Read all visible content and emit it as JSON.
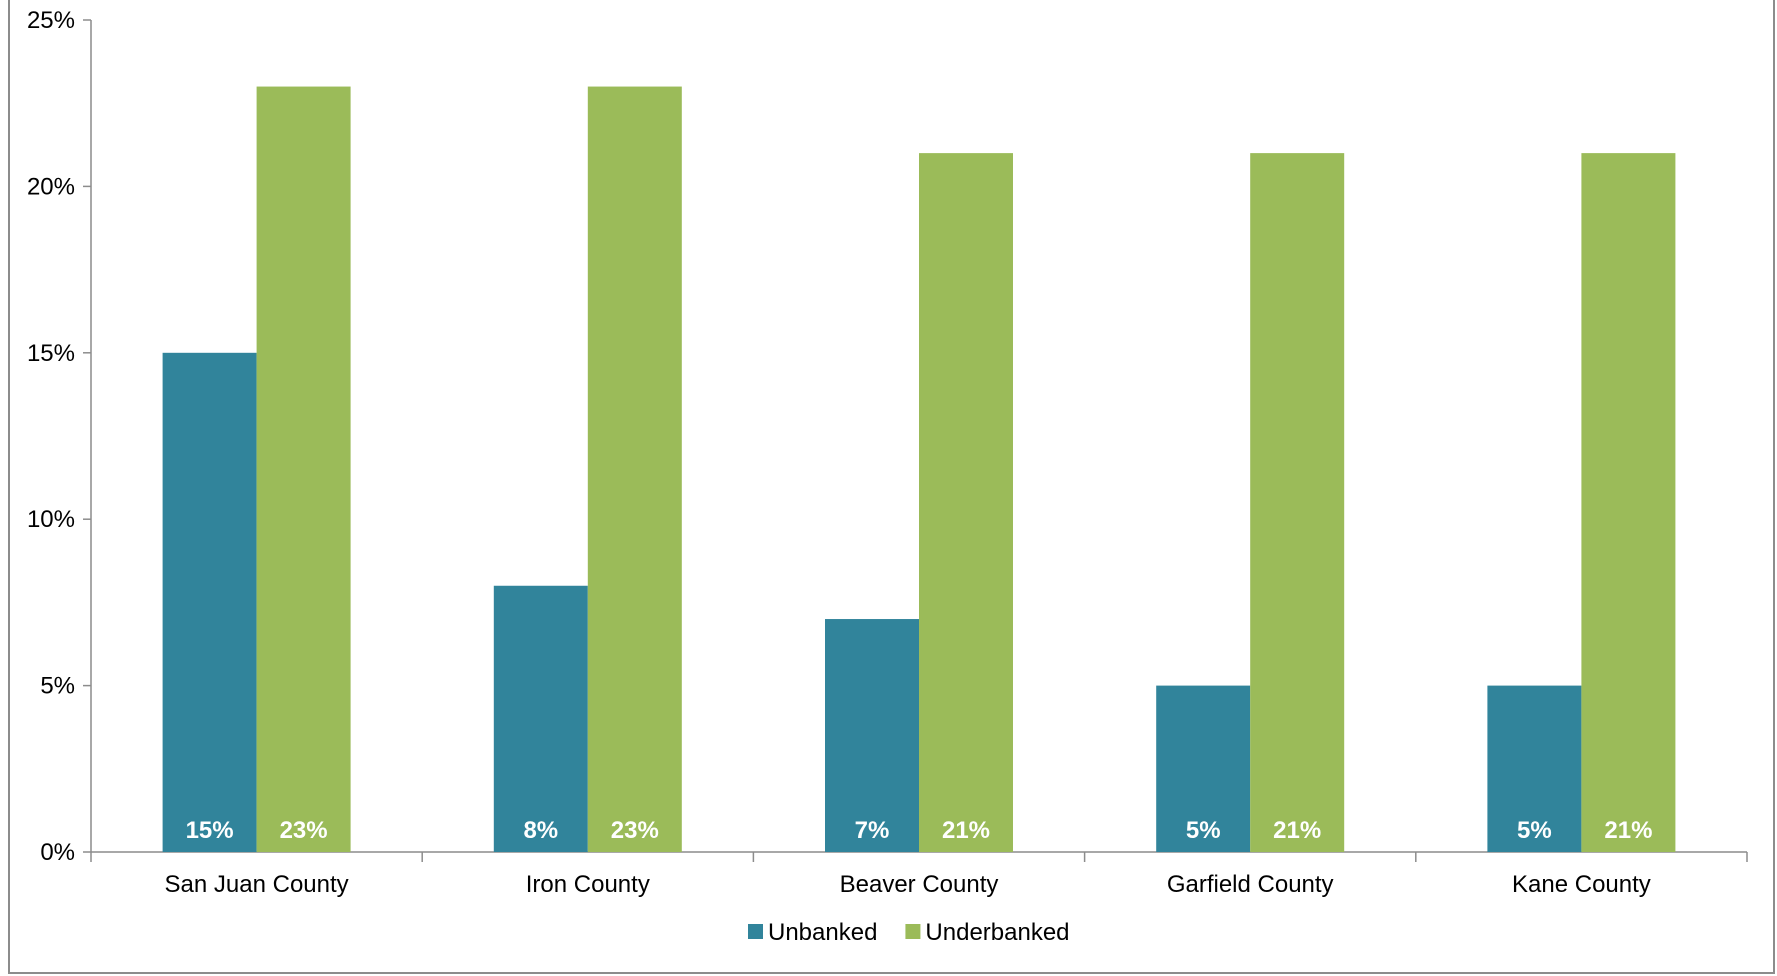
{
  "chart_data": {
    "type": "bar",
    "categories": [
      "San Juan County",
      "Iron County",
      "Beaver County",
      "Garfield County",
      "Kane County"
    ],
    "series": [
      {
        "name": "Unbanked",
        "values": [
          15,
          8,
          7,
          5,
          5
        ],
        "color": "#31849b",
        "labels": [
          "15%",
          "8%",
          "7%",
          "5%",
          "5%"
        ]
      },
      {
        "name": "Underbanked",
        "values": [
          23,
          23,
          21,
          21,
          21
        ],
        "color": "#9bbb59",
        "labels": [
          "23%",
          "23%",
          "21%",
          "21%",
          "21%"
        ]
      }
    ],
    "ylim": [
      0,
      25
    ],
    "yticks": [
      0,
      5,
      10,
      15,
      20,
      25
    ],
    "ytick_labels": [
      "0%",
      "5%",
      "10%",
      "15%",
      "20%",
      "25%"
    ],
    "grid": false,
    "legend_position": "bottom",
    "axis_color": "#8c8c8c"
  }
}
